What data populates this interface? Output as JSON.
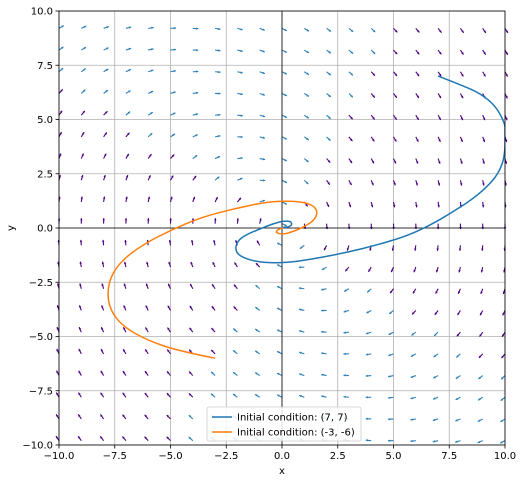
{
  "chart_data": {
    "type": "line",
    "title": "",
    "xlabel": "x",
    "ylabel": "y",
    "xlim": [
      -10,
      10
    ],
    "ylim": [
      -10,
      10
    ],
    "xticks": [
      -10,
      -7.5,
      -5,
      -2.5,
      0,
      2.5,
      5,
      7.5,
      10
    ],
    "yticks": [
      -10,
      -7.5,
      -5,
      -2.5,
      0,
      2.5,
      5,
      7.5,
      10
    ],
    "xtick_labels": [
      "−10.0",
      "−7.5",
      "−5.0",
      "−2.5",
      "0.0",
      "2.5",
      "5.0",
      "7.5",
      "10.0"
    ],
    "ytick_labels": [
      "−10.0",
      "−7.5",
      "−5.0",
      "−2.5",
      "0.0",
      "2.5",
      "5.0",
      "7.5",
      "10.0"
    ],
    "grid": true,
    "legend_position": "lower-center",
    "vector_field": {
      "x": -10,
      "step_x": 1.0,
      "count_x": 21,
      "y_start": -9.8,
      "step_y": 1.0,
      "count_y": 20,
      "description_colors": [
        "#2c7fb8",
        "#4b0082"
      ]
    },
    "series": [
      {
        "name": "Initial condition: (7, 7)",
        "color": "#1f77b4",
        "points": [
          [
            7.0,
            7.0
          ],
          [
            8.0,
            6.6
          ],
          [
            8.9,
            6.2
          ],
          [
            9.6,
            5.6
          ],
          [
            10.0,
            4.8
          ],
          [
            10.0,
            4.5
          ],
          [
            10.0,
            3.3
          ],
          [
            9.7,
            2.5
          ],
          [
            9.2,
            1.9
          ],
          [
            8.5,
            1.3
          ],
          [
            7.6,
            0.7
          ],
          [
            6.6,
            0.1
          ],
          [
            5.5,
            -0.4
          ],
          [
            4.2,
            -0.8
          ],
          [
            3.0,
            -1.1
          ],
          [
            1.8,
            -1.35
          ],
          [
            0.6,
            -1.55
          ],
          [
            -0.3,
            -1.62
          ],
          [
            -1.2,
            -1.55
          ],
          [
            -1.9,
            -1.3
          ],
          [
            -2.1,
            -1.0
          ],
          [
            -2.0,
            -0.6
          ],
          [
            -1.6,
            -0.3
          ],
          [
            -1.0,
            -0.05
          ],
          [
            -0.4,
            0.2
          ],
          [
            0.1,
            0.33
          ],
          [
            0.4,
            0.3
          ],
          [
            0.45,
            0.15
          ],
          [
            0.3,
            0.05
          ],
          [
            0.1,
            0.02
          ],
          [
            0.0,
            0.05
          ]
        ]
      },
      {
        "name": "Initial condition: (-3, -6)",
        "color": "#ff7f0e",
        "points": [
          [
            -3.0,
            -6.0
          ],
          [
            -4.5,
            -5.7
          ],
          [
            -6.0,
            -5.2
          ],
          [
            -7.2,
            -4.5
          ],
          [
            -7.8,
            -3.6
          ],
          [
            -7.8,
            -2.5
          ],
          [
            -7.3,
            -1.6
          ],
          [
            -6.3,
            -0.8
          ],
          [
            -5.0,
            -0.1
          ],
          [
            -3.6,
            0.5
          ],
          [
            -2.1,
            0.9
          ],
          [
            -0.7,
            1.2
          ],
          [
            0.4,
            1.25
          ],
          [
            1.2,
            1.15
          ],
          [
            1.6,
            0.85
          ],
          [
            1.5,
            0.4
          ],
          [
            1.0,
            0.05
          ],
          [
            0.4,
            -0.2
          ],
          [
            0.0,
            -0.3
          ],
          [
            -0.3,
            -0.2
          ],
          [
            -0.15,
            -0.05
          ],
          [
            0.05,
            0.0
          ]
        ]
      }
    ]
  }
}
